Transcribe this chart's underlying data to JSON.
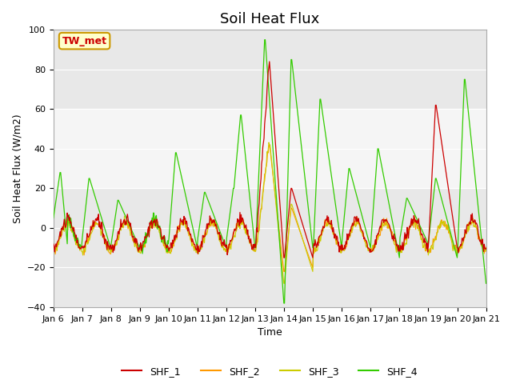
{
  "title": "Soil Heat Flux",
  "ylabel": "Soil Heat Flux (W/m2)",
  "xlabel": "Time",
  "annotation": "TW_met",
  "ylim": [
    -40,
    100
  ],
  "series_colors": {
    "SHF_1": "#cc0000",
    "SHF_2": "#ff9900",
    "SHF_3": "#cccc00",
    "SHF_4": "#33cc00"
  },
  "legend_labels": [
    "SHF_1",
    "SHF_2",
    "SHF_3",
    "SHF_4"
  ],
  "xtick_labels": [
    "Jan 6",
    "Jan 7",
    "Jan 8",
    "Jan 9",
    "Jan 10",
    "Jan 11",
    "Jan 12",
    "Jan 13",
    "Jan 14",
    "Jan 15",
    "Jan 16",
    "Jan 17",
    "Jan 18",
    "Jan 19",
    "Jan 20",
    "Jan 21"
  ],
  "background_color": "#ffffff",
  "plot_bg_color": "#e8e8e8",
  "shaded_band": [
    20,
    60
  ],
  "title_fontsize": 13,
  "axis_fontsize": 9,
  "tick_fontsize": 8
}
